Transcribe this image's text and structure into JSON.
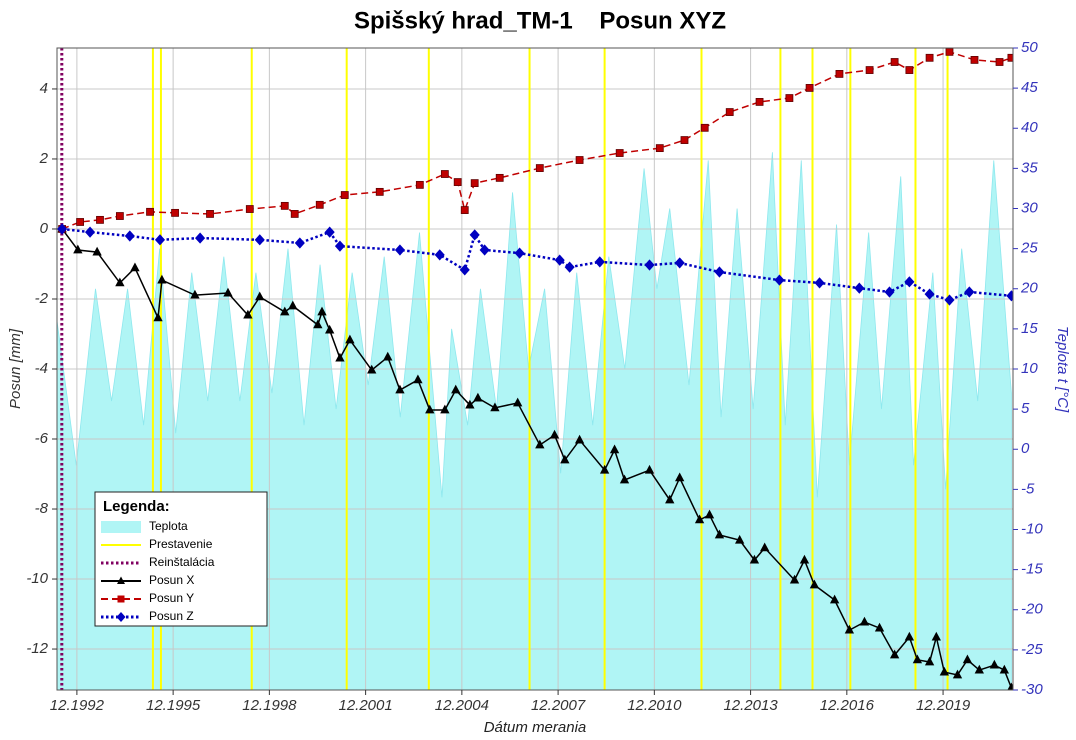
{
  "chart_data": {
    "type": "line",
    "title": "Spišský hrad_TM-1    Posun XYZ",
    "x_label": "Dátum merania",
    "y_label": "Posun [mm]",
    "y2_label": "Teplota t [°C]",
    "xlim": [
      1992.3,
      2022.1
    ],
    "xticks": [
      {
        "value": 1992.92,
        "label": "12.1992"
      },
      {
        "value": 1995.92,
        "label": "12.1995"
      },
      {
        "value": 1998.92,
        "label": "12.1998"
      },
      {
        "value": 2001.92,
        "label": "12.2001"
      },
      {
        "value": 2004.92,
        "label": "12.2004"
      },
      {
        "value": 2007.92,
        "label": "12.2007"
      },
      {
        "value": 2010.92,
        "label": "12.2010"
      },
      {
        "value": 2013.92,
        "label": "12.2013"
      },
      {
        "value": 2016.92,
        "label": "12.2016"
      },
      {
        "value": 2019.92,
        "label": "12.2019"
      }
    ],
    "ylim": [
      -13.17,
      5.17
    ],
    "yticks": [
      -12,
      -10,
      -8,
      -6,
      -4,
      -2,
      0,
      2,
      4
    ],
    "y2lim": [
      -30,
      50
    ],
    "y2ticks": [
      -30,
      -25,
      -20,
      -15,
      -10,
      -5,
      0,
      5,
      10,
      15,
      20,
      25,
      30,
      35,
      40,
      45,
      50
    ],
    "grid": true,
    "legend_title": "Legenda:",
    "legend": "bottom left",
    "series": [
      {
        "name": "Teplota",
        "type": "area",
        "axis": "y2",
        "color": "#b0f5f5",
        "x": [
          1992.3,
          1992.9,
          1993.5,
          1994.0,
          1994.5,
          1995.0,
          1995.5,
          1996.0,
          1996.5,
          1997.0,
          1997.5,
          1998.0,
          1998.5,
          1999.0,
          1999.5,
          2000.0,
          2000.5,
          2001.0,
          2001.5,
          2002.0,
          2002.5,
          2003.0,
          2003.6,
          2004.3,
          2004.6,
          2005.1,
          2005.5,
          2006.0,
          2006.5,
          2007.0,
          2007.5,
          2008.0,
          2008.5,
          2009.0,
          2009.5,
          2010.0,
          2010.6,
          2011.0,
          2011.4,
          2012.0,
          2012.6,
          2013.0,
          2013.5,
          2014.0,
          2014.6,
          2015.0,
          2015.5,
          2016.0,
          2016.6,
          2017.0,
          2017.6,
          2018.0,
          2018.6,
          2019.0,
          2019.6,
          2020.0,
          2020.5,
          2021.0,
          2021.5,
          2022.05
        ],
        "values": [
          16,
          -2,
          20,
          6,
          20,
          3,
          25,
          2,
          22,
          6,
          24,
          6,
          22,
          7,
          25,
          3,
          23,
          5,
          22,
          8,
          24,
          4,
          27,
          -6,
          15,
          3,
          20,
          5,
          32,
          10,
          20,
          -3,
          22,
          3,
          24,
          10,
          35,
          20,
          30,
          8,
          36,
          4,
          30,
          5,
          37,
          3,
          36,
          -6,
          28,
          -2,
          27,
          5,
          34,
          -2,
          22,
          -5,
          25,
          6,
          36,
          7
        ]
      },
      {
        "name": "Prestavenie",
        "type": "vline",
        "color": "#ffff00",
        "x": [
          1995.29,
          1995.54,
          1998.37,
          2001.33,
          2003.89,
          2007.03,
          2009.37,
          2012.39,
          2014.85,
          2015.85,
          2017.03,
          2019.06,
          2020.06
        ]
      },
      {
        "name": "Reinštalácia",
        "type": "vline",
        "color": "#800060",
        "dash": "dotted",
        "x": [
          1992.45
        ]
      },
      {
        "name": "Posun X",
        "type": "line",
        "color": "#000000",
        "marker": "triangle",
        "x": [
          1992.46,
          1992.95,
          1993.55,
          1994.26,
          1994.73,
          1995.45,
          1995.57,
          1996.6,
          1997.63,
          1998.25,
          1998.62,
          1999.4,
          1999.65,
          2000.43,
          2000.56,
          2000.8,
          2001.12,
          2001.43,
          2002.11,
          2002.61,
          2002.99,
          2003.55,
          2003.92,
          2004.39,
          2004.73,
          2005.17,
          2005.42,
          2005.95,
          2006.66,
          2007.35,
          2007.81,
          2008.13,
          2008.59,
          2009.37,
          2009.68,
          2009.99,
          2010.77,
          2011.4,
          2011.71,
          2012.33,
          2012.64,
          2012.95,
          2013.58,
          2014.04,
          2014.36,
          2015.29,
          2015.6,
          2015.91,
          2016.54,
          2017.0,
          2017.47,
          2017.94,
          2018.41,
          2018.87,
          2019.12,
          2019.5,
          2019.71,
          2019.96,
          2020.37,
          2020.68,
          2021.05,
          2021.52,
          2021.83,
          2022.05
        ],
        "values": [
          0,
          -0.6,
          -0.66,
          -1.54,
          -1.11,
          -2.54,
          -1.46,
          -1.89,
          -1.83,
          -2.46,
          -1.94,
          -2.37,
          -2.2,
          -2.74,
          -2.37,
          -2.89,
          -3.69,
          -3.17,
          -4.03,
          -3.66,
          -4.6,
          -4.31,
          -5.17,
          -5.17,
          -4.6,
          -5.03,
          -4.83,
          -5.11,
          -4.97,
          -6.17,
          -5.89,
          -6.6,
          -6.03,
          -6.89,
          -6.31,
          -7.17,
          -6.89,
          -7.74,
          -7.11,
          -8.31,
          -8.17,
          -8.74,
          -8.89,
          -9.46,
          -9.11,
          -10.03,
          -9.46,
          -10.17,
          -10.6,
          -11.46,
          -11.23,
          -11.4,
          -12.17,
          -11.66,
          -12.31,
          -12.37,
          -11.66,
          -12.66,
          -12.74,
          -12.31,
          -12.6,
          -12.46,
          -12.6,
          -13.11
        ]
      },
      {
        "name": "Posun Y",
        "type": "line",
        "color": "#c00000",
        "dash": "dashed",
        "marker": "square",
        "x": [
          1992.46,
          1993.02,
          1993.64,
          1994.26,
          1995.2,
          1995.98,
          1997.07,
          1998.31,
          1999.4,
          1999.71,
          2000.49,
          2001.27,
          2002.36,
          2003.61,
          2004.39,
          2004.79,
          2005.01,
          2005.32,
          2006.1,
          2007.35,
          2008.59,
          2009.84,
          2011.09,
          2011.86,
          2012.49,
          2013.27,
          2014.2,
          2015.13,
          2015.76,
          2016.69,
          2017.63,
          2018.41,
          2018.87,
          2019.5,
          2020.12,
          2020.9,
          2021.68,
          2022.05
        ],
        "values": [
          0,
          0.2,
          0.26,
          0.37,
          0.49,
          0.46,
          0.43,
          0.57,
          0.66,
          0.43,
          0.69,
          0.97,
          1.06,
          1.26,
          1.57,
          1.34,
          0.54,
          1.31,
          1.46,
          1.74,
          1.97,
          2.17,
          2.31,
          2.54,
          2.89,
          3.34,
          3.63,
          3.74,
          4.03,
          4.43,
          4.54,
          4.77,
          4.54,
          4.89,
          5.06,
          4.83,
          4.77,
          4.89
        ]
      },
      {
        "name": "Posun Z",
        "type": "line",
        "color": "#0000c0",
        "dash": "dotted",
        "marker": "diamond",
        "x": [
          1992.46,
          1993.33,
          1994.57,
          1995.51,
          1996.76,
          1998.62,
          1999.87,
          2000.8,
          2001.12,
          2002.99,
          2004.23,
          2005.01,
          2005.32,
          2005.63,
          2006.72,
          2007.97,
          2008.28,
          2009.22,
          2010.77,
          2011.71,
          2012.95,
          2014.82,
          2016.07,
          2017.31,
          2018.25,
          2018.87,
          2019.5,
          2020.12,
          2020.74,
          2022.05
        ],
        "values": [
          0,
          -0.09,
          -0.2,
          -0.31,
          -0.26,
          -0.31,
          -0.4,
          -0.09,
          -0.49,
          -0.6,
          -0.74,
          -1.17,
          -0.17,
          -0.6,
          -0.69,
          -0.89,
          -1.09,
          -0.94,
          -1.03,
          -0.97,
          -1.23,
          -1.46,
          -1.54,
          -1.69,
          -1.8,
          -1.51,
          -1.86,
          -2.03,
          -1.8,
          -1.91
        ]
      }
    ]
  }
}
